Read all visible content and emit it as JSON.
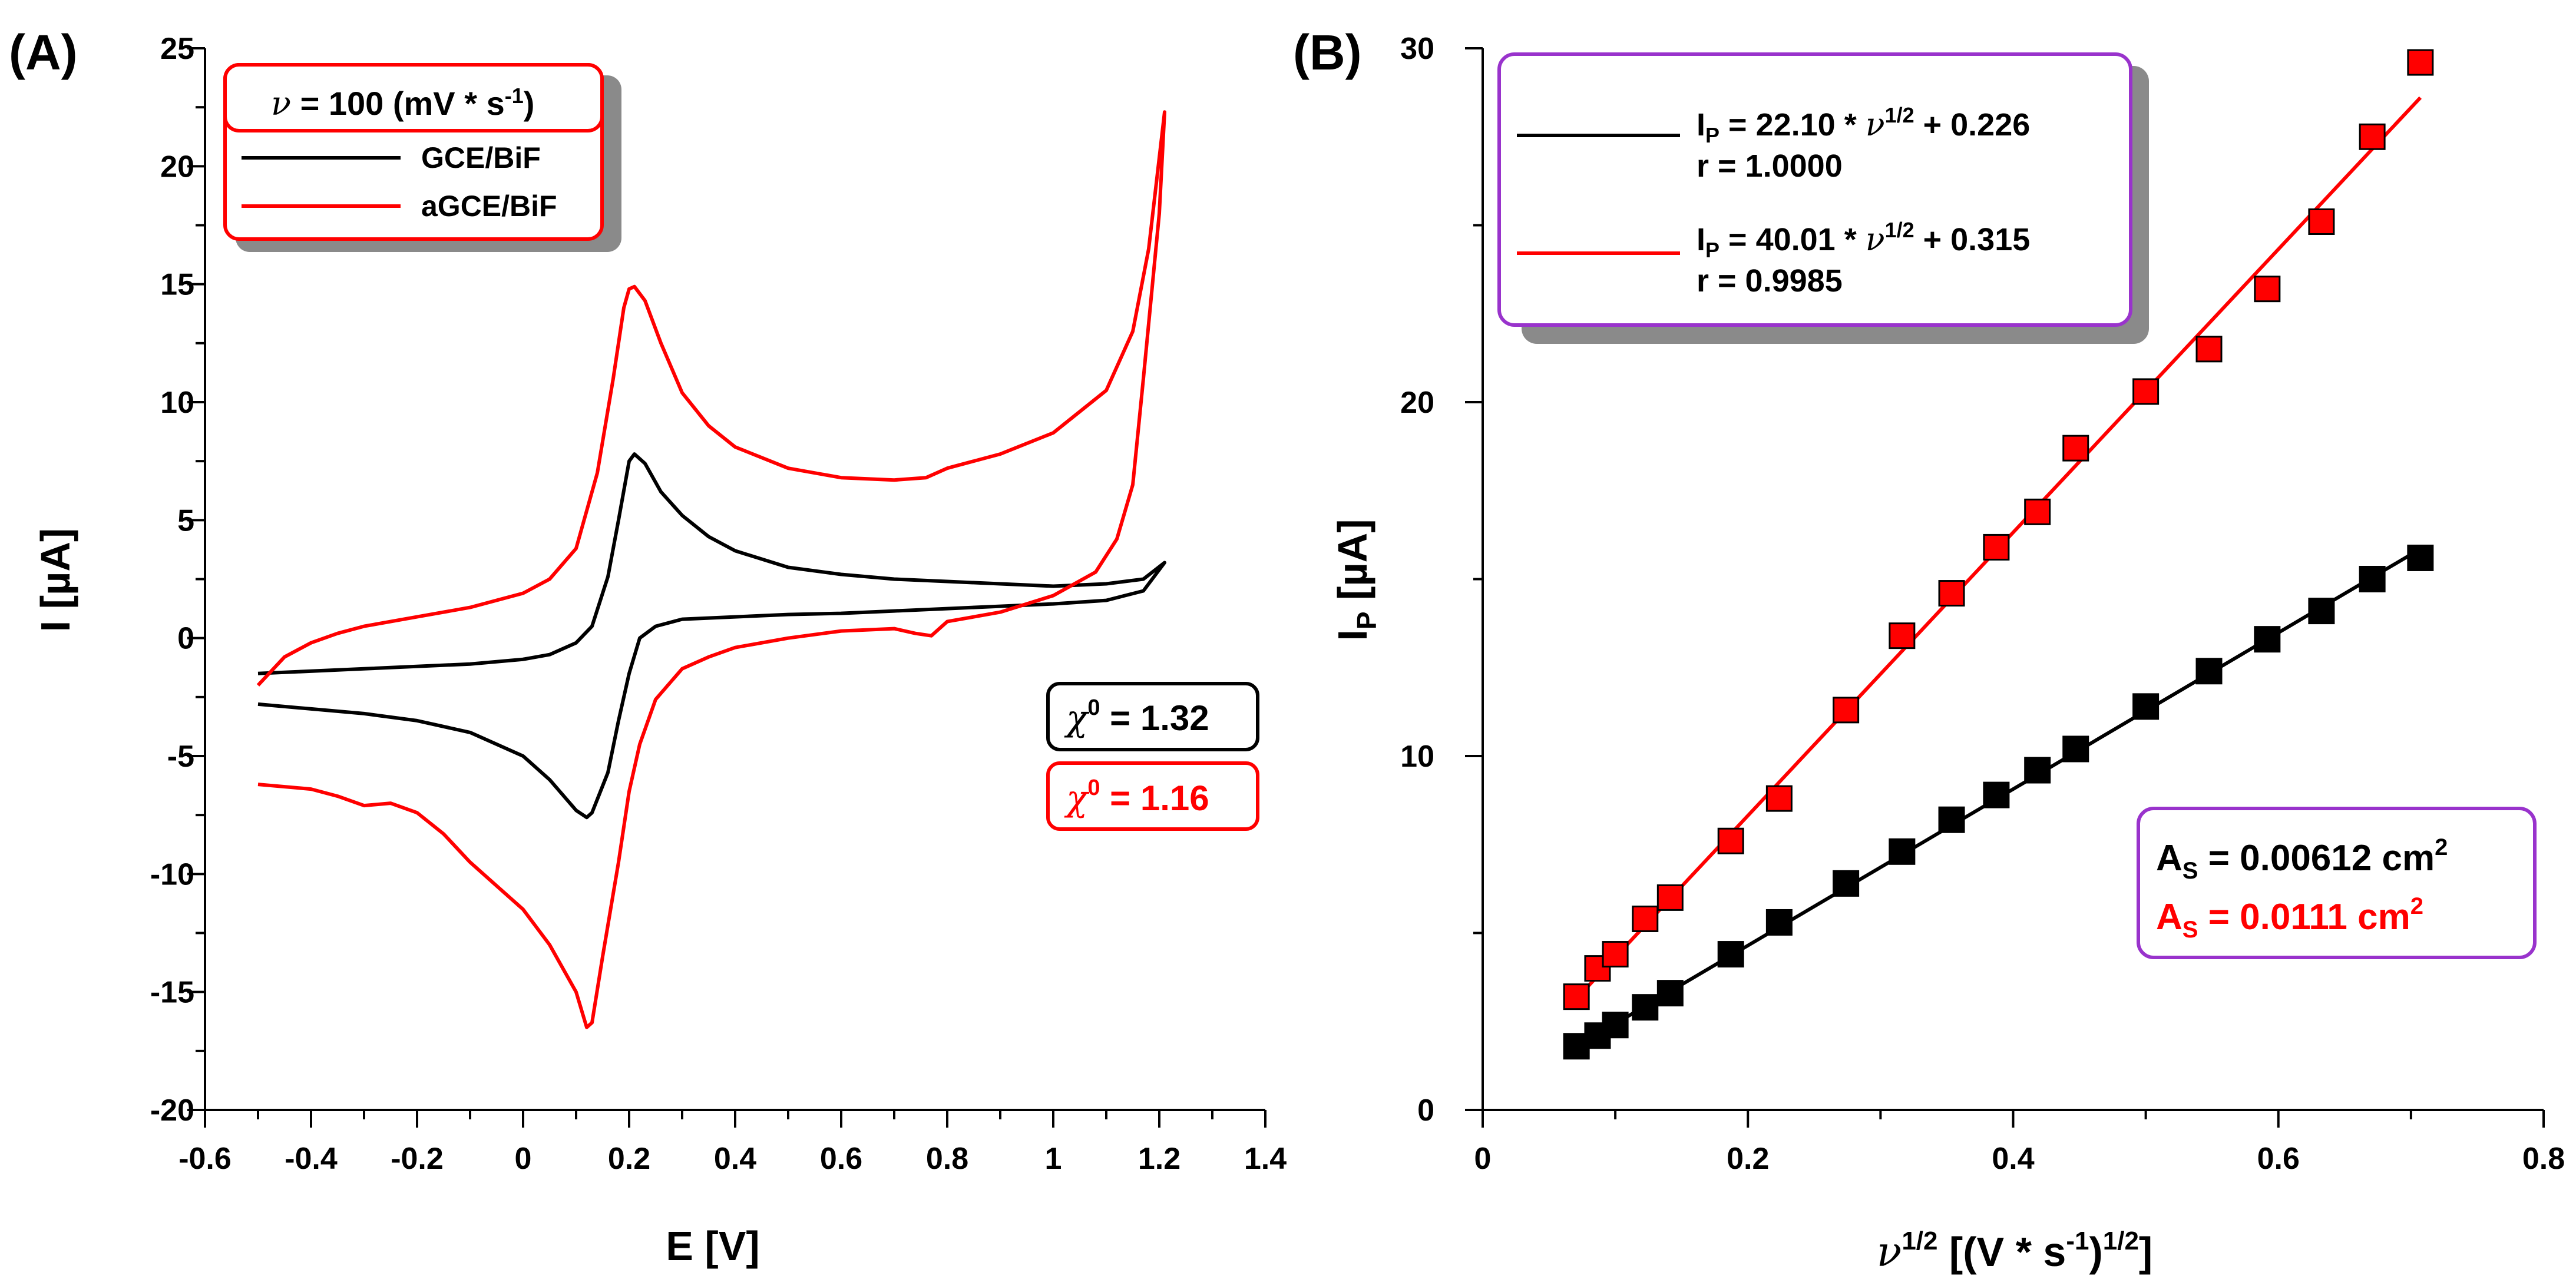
{
  "colors": {
    "black": "#000000",
    "red": "#ff0000",
    "purple": "#9933cc",
    "shadow": "#8a8a8a"
  },
  "chart_data": [
    {
      "panel_label": "(A)",
      "type": "line",
      "title": "",
      "xlabel": "E [V]",
      "ylabel": "I [µA]",
      "xlim": [
        -0.6,
        1.4
      ],
      "ylim": [
        -20,
        25
      ],
      "x_ticks": [
        -0.6,
        -0.4,
        -0.2,
        0,
        0.2,
        0.4,
        0.6,
        0.8,
        1,
        1.2,
        1.4
      ],
      "x_tick_labels": [
        "-0.6",
        "-0.4",
        "-0.2",
        "0",
        "0.2",
        "0.4",
        "0.6",
        "0.8",
        "1",
        "1.2",
        "1.4"
      ],
      "y_ticks": [
        -20,
        -15,
        -10,
        -5,
        0,
        5,
        10,
        15,
        20,
        25
      ],
      "y_tick_labels": [
        "-20",
        "-15",
        "-10",
        "-5",
        "0",
        "5",
        "10",
        "15",
        "20",
        "25"
      ],
      "legend": {
        "title_symbol": "ν",
        "title_text": " = 100 (mV * s",
        "title_sup": "-1",
        "title_end": ")",
        "entries": [
          "GCE/BiF",
          "aGCE/BiF"
        ]
      },
      "annotations": [
        {
          "symbol": "χ",
          "sup": "0",
          "text": " = 1.32",
          "color": "black"
        },
        {
          "symbol": "χ",
          "sup": "0",
          "text": " = 1.16",
          "color": "red"
        }
      ],
      "series": [
        {
          "name": "GCE/BiF",
          "color": "black",
          "points": [
            [
              -0.5,
              -1.5
            ],
            [
              -0.3,
              -1.3
            ],
            [
              -0.1,
              -1.1
            ],
            [
              0.0,
              -0.9
            ],
            [
              0.05,
              -0.7
            ],
            [
              0.1,
              -0.2
            ],
            [
              0.13,
              0.5
            ],
            [
              0.16,
              2.6
            ],
            [
              0.18,
              5.0
            ],
            [
              0.2,
              7.5
            ],
            [
              0.21,
              7.8
            ],
            [
              0.23,
              7.4
            ],
            [
              0.26,
              6.2
            ],
            [
              0.3,
              5.2
            ],
            [
              0.35,
              4.3
            ],
            [
              0.4,
              3.7
            ],
            [
              0.5,
              3.0
            ],
            [
              0.6,
              2.7
            ],
            [
              0.7,
              2.5
            ],
            [
              0.8,
              2.4
            ],
            [
              0.9,
              2.3
            ],
            [
              1.0,
              2.2
            ],
            [
              1.1,
              2.3
            ],
            [
              1.17,
              2.5
            ],
            [
              1.21,
              3.2
            ],
            [
              1.17,
              2.0
            ],
            [
              1.1,
              1.6
            ],
            [
              1.0,
              1.45
            ],
            [
              0.9,
              1.35
            ],
            [
              0.8,
              1.25
            ],
            [
              0.7,
              1.15
            ],
            [
              0.6,
              1.05
            ],
            [
              0.5,
              1.0
            ],
            [
              0.4,
              0.9
            ],
            [
              0.3,
              0.8
            ],
            [
              0.25,
              0.5
            ],
            [
              0.22,
              0.0
            ],
            [
              0.2,
              -1.5
            ],
            [
              0.18,
              -3.5
            ],
            [
              0.16,
              -5.7
            ],
            [
              0.13,
              -7.4
            ],
            [
              0.12,
              -7.6
            ],
            [
              0.1,
              -7.3
            ],
            [
              0.05,
              -6.0
            ],
            [
              0.0,
              -5.0
            ],
            [
              -0.1,
              -4.0
            ],
            [
              -0.2,
              -3.5
            ],
            [
              -0.3,
              -3.2
            ],
            [
              -0.4,
              -3.0
            ],
            [
              -0.5,
              -2.8
            ]
          ]
        },
        {
          "name": "aGCE/BiF",
          "color": "red",
          "points": [
            [
              -0.5,
              -2.0
            ],
            [
              -0.45,
              -0.8
            ],
            [
              -0.4,
              -0.2
            ],
            [
              -0.35,
              0.2
            ],
            [
              -0.3,
              0.5
            ],
            [
              -0.2,
              0.9
            ],
            [
              -0.1,
              1.3
            ],
            [
              0.0,
              1.9
            ],
            [
              0.05,
              2.5
            ],
            [
              0.1,
              3.8
            ],
            [
              0.14,
              7.0
            ],
            [
              0.17,
              11.0
            ],
            [
              0.19,
              14.0
            ],
            [
              0.2,
              14.8
            ],
            [
              0.21,
              14.9
            ],
            [
              0.23,
              14.3
            ],
            [
              0.26,
              12.5
            ],
            [
              0.3,
              10.4
            ],
            [
              0.35,
              9.0
            ],
            [
              0.4,
              8.1
            ],
            [
              0.5,
              7.2
            ],
            [
              0.6,
              6.8
            ],
            [
              0.7,
              6.7
            ],
            [
              0.76,
              6.8
            ],
            [
              0.8,
              7.2
            ],
            [
              0.9,
              7.8
            ],
            [
              1.0,
              8.7
            ],
            [
              1.1,
              10.5
            ],
            [
              1.15,
              13.0
            ],
            [
              1.18,
              16.5
            ],
            [
              1.21,
              22.3
            ],
            [
              1.2,
              18.0
            ],
            [
              1.17,
              11.0
            ],
            [
              1.15,
              6.5
            ],
            [
              1.12,
              4.2
            ],
            [
              1.08,
              2.8
            ],
            [
              1.0,
              1.8
            ],
            [
              0.9,
              1.1
            ],
            [
              0.8,
              0.7
            ],
            [
              0.77,
              0.1
            ],
            [
              0.74,
              0.2
            ],
            [
              0.7,
              0.4
            ],
            [
              0.6,
              0.3
            ],
            [
              0.5,
              0.0
            ],
            [
              0.4,
              -0.4
            ],
            [
              0.35,
              -0.8
            ],
            [
              0.3,
              -1.3
            ],
            [
              0.25,
              -2.6
            ],
            [
              0.22,
              -4.5
            ],
            [
              0.2,
              -6.5
            ],
            [
              0.18,
              -9.5
            ],
            [
              0.15,
              -13.5
            ],
            [
              0.13,
              -16.3
            ],
            [
              0.12,
              -16.5
            ],
            [
              0.1,
              -15.0
            ],
            [
              0.05,
              -13.0
            ],
            [
              0.0,
              -11.5
            ],
            [
              -0.05,
              -10.5
            ],
            [
              -0.1,
              -9.5
            ],
            [
              -0.15,
              -8.3
            ],
            [
              -0.2,
              -7.4
            ],
            [
              -0.25,
              -7.0
            ],
            [
              -0.3,
              -7.1
            ],
            [
              -0.35,
              -6.7
            ],
            [
              -0.4,
              -6.4
            ],
            [
              -0.5,
              -6.2
            ]
          ]
        }
      ]
    },
    {
      "panel_label": "(B)",
      "type": "scatter",
      "title": "",
      "xlabel_symbol": "ν",
      "xlabel_sup": "1/2",
      "xlabel_text": " [(V * s",
      "xlabel_sup2": "-1",
      "xlabel_end": ")",
      "xlabel_sup3": "1/2",
      "xlabel_close": "]",
      "ylabel_main": "I",
      "ylabel_sub": "P",
      "ylabel_end": " [µA]",
      "xlim": [
        0,
        0.8
      ],
      "ylim": [
        0,
        30
      ],
      "x_ticks": [
        0,
        0.2,
        0.4,
        0.6,
        0.8
      ],
      "x_tick_labels": [
        "0",
        "0.2",
        "0.4",
        "0.6",
        "0.8"
      ],
      "y_ticks": [
        0,
        10,
        20,
        30
      ],
      "y_tick_labels": [
        "0",
        "10",
        "20",
        "30"
      ],
      "legend": {
        "entries": [
          {
            "color": "black",
            "eq_main": "I",
            "eq_sub": "P",
            "eq_mid": " = 22.10 * ",
            "eq_symbol": "ν",
            "eq_sup": "1/2",
            "eq_end": " + 0.226",
            "r_text": "r = 1.0000"
          },
          {
            "color": "red",
            "eq_main": "I",
            "eq_sub": "P",
            "eq_mid": " = 40.01 * ",
            "eq_symbol": "ν",
            "eq_sup": "1/2",
            "eq_end": " + 0.315",
            "r_text": "r = 0.9985"
          }
        ]
      },
      "area_box": [
        {
          "color": "black",
          "main": "A",
          "sub": "S",
          "text": " = 0.00612 cm",
          "sup": "2"
        },
        {
          "color": "red",
          "main": "A",
          "sub": "S",
          "text": " = 0.0111 cm",
          "sup": "2"
        }
      ],
      "series": [
        {
          "name": "GCE/BiF",
          "color": "black",
          "fit_slope": 22.1,
          "fit_intercept": 0.226,
          "x": [
            0.0707,
            0.0866,
            0.1,
            0.1225,
            0.1414,
            0.1871,
            0.2236,
            0.2739,
            0.3162,
            0.3536,
            0.3873,
            0.4183,
            0.4472,
            0.5,
            0.5477,
            0.5916,
            0.6325,
            0.6708,
            0.7071
          ],
          "y": [
            1.8,
            2.1,
            2.4,
            2.9,
            3.3,
            4.4,
            5.3,
            6.4,
            7.3,
            8.2,
            8.9,
            9.6,
            10.2,
            11.4,
            12.4,
            13.3,
            14.1,
            15.0,
            15.6
          ]
        },
        {
          "name": "aGCE/BiF",
          "color": "red",
          "fit_slope": 40.01,
          "fit_intercept": 0.315,
          "x": [
            0.0707,
            0.0866,
            0.1,
            0.1225,
            0.1414,
            0.1871,
            0.2236,
            0.2739,
            0.3162,
            0.3536,
            0.3873,
            0.4183,
            0.4472,
            0.5,
            0.5477,
            0.5916,
            0.6325,
            0.6708,
            0.7071
          ],
          "y": [
            3.2,
            4.0,
            4.4,
            5.4,
            6.0,
            7.6,
            8.8,
            11.3,
            13.4,
            14.6,
            15.9,
            16.9,
            18.7,
            20.3,
            21.5,
            23.2,
            25.1,
            27.5,
            29.6
          ]
        }
      ]
    }
  ]
}
